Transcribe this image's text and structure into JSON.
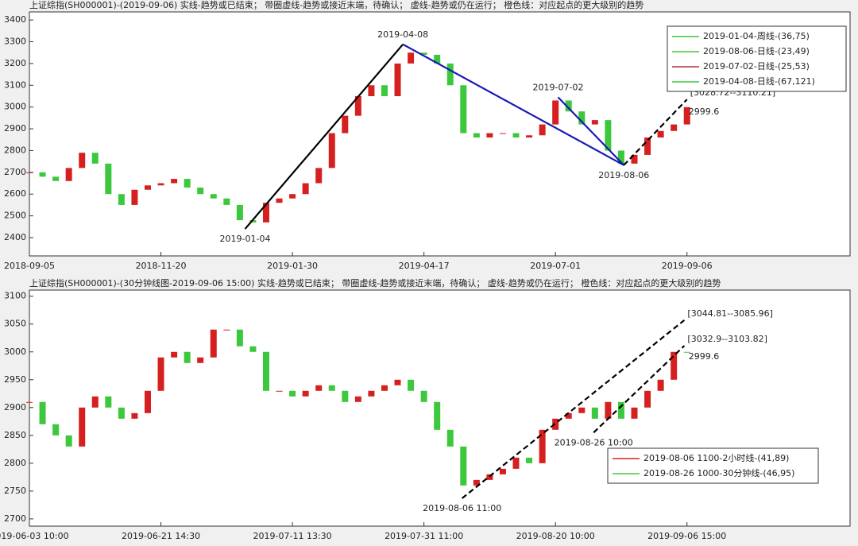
{
  "chart_data": [
    {
      "type": "candlestick",
      "title": "上证综指(SH000001)-(2019-09-06)  实线-趋势或已结束；  带圈虚线-趋势或接近末端，待确认；  虚线-趋势或仍在运行；  橙色线：对应起点的更大级别的趋势",
      "xlim": [
        0,
        312
      ],
      "ylim": [
        2316,
        3437
      ],
      "xticks": [
        {
          "value": 0,
          "label": "2018-09-05"
        },
        {
          "value": 50,
          "label": "2018-11-20"
        },
        {
          "value": 100,
          "label": "2019-01-30"
        },
        {
          "value": 150,
          "label": "2019-04-17"
        },
        {
          "value": 200,
          "label": "2019-07-01"
        },
        {
          "value": 250,
          "label": "2019-09-06"
        }
      ],
      "yticks": [
        2400,
        2500,
        2600,
        2700,
        2800,
        2900,
        3000,
        3100,
        3200,
        3300,
        3400
      ],
      "up_color": "#d62020",
      "down_color": "#3cc83c",
      "x": [
        0,
        5,
        10,
        15,
        20,
        25,
        30,
        35,
        40,
        45,
        50,
        55,
        60,
        65,
        70,
        75,
        80,
        85,
        90,
        95,
        100,
        105,
        110,
        115,
        120,
        125,
        130,
        135,
        140,
        145,
        150,
        155,
        160,
        165,
        170,
        175,
        180,
        185,
        190,
        195,
        200,
        205,
        210,
        215,
        220,
        225,
        230,
        235,
        240,
        245,
        250
      ],
      "values": [
        2700,
        2680,
        2660,
        2720,
        2790,
        2740,
        2600,
        2550,
        2620,
        2640,
        2650,
        2670,
        2630,
        2600,
        2580,
        2550,
        2480,
        2470,
        2560,
        2580,
        2600,
        2650,
        2720,
        2880,
        2960,
        3050,
        3100,
        3050,
        3200,
        3250,
        3240,
        3200,
        3100,
        2880,
        2860,
        2880,
        2880,
        2860,
        2870,
        2920,
        3030,
        2980,
        2920,
        2940,
        2800,
        2740,
        2780,
        2860,
        2890,
        2920,
        2999.6
      ],
      "lines": [
        {
          "color": "#000000",
          "dash": false,
          "x": [
            82,
            142
          ],
          "y": [
            2440,
            3288
          ]
        },
        {
          "color": "#1a1ab4",
          "dash": false,
          "x": [
            142,
            226
          ],
          "y": [
            3288,
            2733
          ]
        },
        {
          "color": "#1a1ab4",
          "dash": false,
          "x": [
            201,
            226
          ],
          "y": [
            3045,
            2733
          ]
        },
        {
          "color": "#000000",
          "dash": true,
          "x": [
            226,
            250
          ],
          "y": [
            2733,
            3035
          ]
        }
      ],
      "annotations": [
        {
          "text": "2019-04-08",
          "x": 142,
          "y": 3288,
          "position": "above",
          "color": "#1a1ab4"
        },
        {
          "text": "2019-07-02",
          "x": 201,
          "y": 3045,
          "position": "above",
          "color": "#1a1ab4"
        },
        {
          "text": "2019-01-04",
          "x": 82,
          "y": 2440,
          "position": "below",
          "color": "#000000"
        },
        {
          "text": "2019-08-06",
          "x": 226,
          "y": 2733,
          "position": "below",
          "color": "#000000"
        },
        {
          "text": "[3028.72--3110.21]",
          "x": 250,
          "y": 3035,
          "position": "right-big",
          "color": "#000000"
        },
        {
          "text": "2999.6",
          "x": 250,
          "y": 2999.6,
          "position": "right",
          "color": "#000000"
        }
      ],
      "legend": {
        "corner": "upper right",
        "entries": [
          {
            "name": "2019-01-04-周线-(36,75)",
            "color": "#3cc83c"
          },
          {
            "name": "2019-08-06-日线-(23,49)",
            "color": "#3cc83c"
          },
          {
            "name": "2019-07-02-日线-(25,53)",
            "color": "#b03030"
          },
          {
            "name": "2019-04-08-日线-(67,121)",
            "color": "#3cc83c"
          }
        ]
      }
    },
    {
      "type": "candlestick",
      "title": "上证综指(SH000001)-(30分钟线图-2019-09-06 15:00)  实线-趋势或已结束；  带圈虚线-趋势或接近末端，待确认；  虚线-趋势或仍在运行；  橙色线：对应起点的更大级别的趋势",
      "xlim": [
        0,
        312
      ],
      "ylim": [
        2687,
        3111
      ],
      "xticks": [
        {
          "value": 0,
          "label": "2019-06-03 10:00"
        },
        {
          "value": 50,
          "label": "2019-06-21 14:30"
        },
        {
          "value": 100,
          "label": "2019-07-11 13:30"
        },
        {
          "value": 150,
          "label": "2019-07-31 11:00"
        },
        {
          "value": 200,
          "label": "2019-08-20 10:00"
        },
        {
          "value": 250,
          "label": "2019-09-06 15:00"
        }
      ],
      "yticks": [
        2700,
        2750,
        2800,
        2850,
        2900,
        2950,
        3000,
        3050,
        3100
      ],
      "up_color": "#d62020",
      "down_color": "#3cc83c",
      "x": [
        0,
        5,
        10,
        15,
        20,
        25,
        30,
        35,
        40,
        45,
        50,
        55,
        60,
        65,
        70,
        75,
        80,
        85,
        90,
        95,
        100,
        105,
        110,
        115,
        120,
        125,
        130,
        135,
        140,
        145,
        150,
        155,
        160,
        165,
        170,
        175,
        180,
        185,
        190,
        195,
        200,
        205,
        210,
        215,
        220,
        225,
        230,
        235,
        240,
        245,
        250
      ],
      "values": [
        2910,
        2870,
        2850,
        2830,
        2900,
        2920,
        2900,
        2880,
        2890,
        2930,
        2990,
        3000,
        2980,
        2990,
        3040,
        3040,
        3010,
        3000,
        2930,
        2930,
        2920,
        2930,
        2940,
        2930,
        2910,
        2920,
        2930,
        2940,
        2950,
        2930,
        2910,
        2860,
        2830,
        2760,
        2770,
        2780,
        2790,
        2810,
        2800,
        2860,
        2880,
        2890,
        2900,
        2880,
        2910,
        2880,
        2900,
        2930,
        2950,
        3000,
        2999.6
      ],
      "lines": [
        {
          "color": "#000000",
          "dash": true,
          "x": [
            164.5,
            249
          ],
          "y": [
            2737,
            3057
          ]
        },
        {
          "color": "#000000",
          "dash": true,
          "x": [
            214.5,
            249
          ],
          "y": [
            2855,
            3011
          ]
        }
      ],
      "annotations": [
        {
          "text": "2019-08-06 11:00",
          "x": 164.5,
          "y": 2737,
          "position": "below",
          "color": "#000000"
        },
        {
          "text": "2019-08-26 10:00",
          "x": 214.5,
          "y": 2855,
          "position": "below",
          "color": "#000000"
        },
        {
          "text": "[3044.81--3085.96]",
          "x": 249,
          "y": 3057,
          "position": "right-big",
          "color": "#000000"
        },
        {
          "text": "[3032.9--3103.82]",
          "x": 249,
          "y": 3011,
          "position": "right-big",
          "color": "#000000"
        },
        {
          "text": "2999.6",
          "x": 250,
          "y": 2999.6,
          "position": "right",
          "color": "#000000"
        }
      ],
      "legend": {
        "corner": "lower right",
        "entries": [
          {
            "name": "2019-08-06 1100-2小时线-(41,89)",
            "color": "#d62020"
          },
          {
            "name": "2019-08-26 1000-30分钟线-(46,95)",
            "color": "#3cc83c"
          }
        ]
      }
    }
  ]
}
